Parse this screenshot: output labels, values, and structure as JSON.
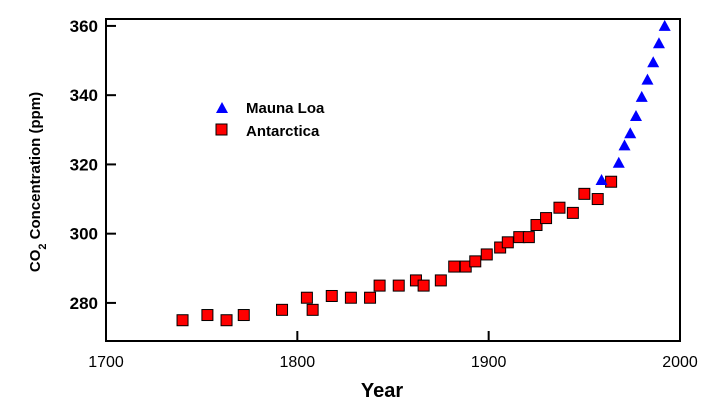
{
  "chart_data": {
    "type": "scatter",
    "title": "",
    "xlabel": "Year",
    "ylabel_main": "CO",
    "ylabel_sub": "2",
    "ylabel_rest": " Concentration (ppm)",
    "xlim": [
      1700,
      2000
    ],
    "ylim": [
      269,
      362
    ],
    "x_ticks": [
      1700,
      1800,
      1900,
      2000
    ],
    "x_tick_labels": [
      "1700",
      "1800",
      "1900",
      "2000"
    ],
    "y_ticks": [
      280,
      300,
      320,
      340,
      360
    ],
    "y_tick_labels": [
      "280",
      "300",
      "320",
      "340",
      "360"
    ],
    "grid": false,
    "legend_position": "upper-left",
    "series": [
      {
        "name": "Mauna Loa",
        "marker": "triangle",
        "color": "#0000ff",
        "points": [
          [
            1959,
            315.5
          ],
          [
            1968,
            320.5
          ],
          [
            1971,
            325.5
          ],
          [
            1974,
            329
          ],
          [
            1977,
            334
          ],
          [
            1980,
            339.5
          ],
          [
            1983,
            344.5
          ],
          [
            1986,
            349.5
          ],
          [
            1989,
            355
          ],
          [
            1992,
            360
          ]
        ]
      },
      {
        "name": "Antarctica",
        "marker": "square",
        "color": "#ff0000",
        "points": [
          [
            1740,
            275
          ],
          [
            1753,
            276.5
          ],
          [
            1763,
            275
          ],
          [
            1772,
            276.5
          ],
          [
            1792,
            278
          ],
          [
            1805,
            281.5
          ],
          [
            1808,
            278
          ],
          [
            1818,
            282
          ],
          [
            1828,
            281.5
          ],
          [
            1838,
            281.5
          ],
          [
            1843,
            285
          ],
          [
            1853,
            285
          ],
          [
            1862,
            286.5
          ],
          [
            1866,
            285
          ],
          [
            1875,
            286.5
          ],
          [
            1882,
            290.5
          ],
          [
            1888,
            290.5
          ],
          [
            1893,
            292
          ],
          [
            1899,
            294
          ],
          [
            1906,
            296
          ],
          [
            1910,
            297.5
          ],
          [
            1916,
            299
          ],
          [
            1921,
            299
          ],
          [
            1925,
            302.5
          ],
          [
            1930,
            304.5
          ],
          [
            1937,
            307.5
          ],
          [
            1944,
            306
          ],
          [
            1950,
            311.5
          ],
          [
            1957,
            310
          ],
          [
            1964,
            315
          ]
        ]
      }
    ]
  }
}
